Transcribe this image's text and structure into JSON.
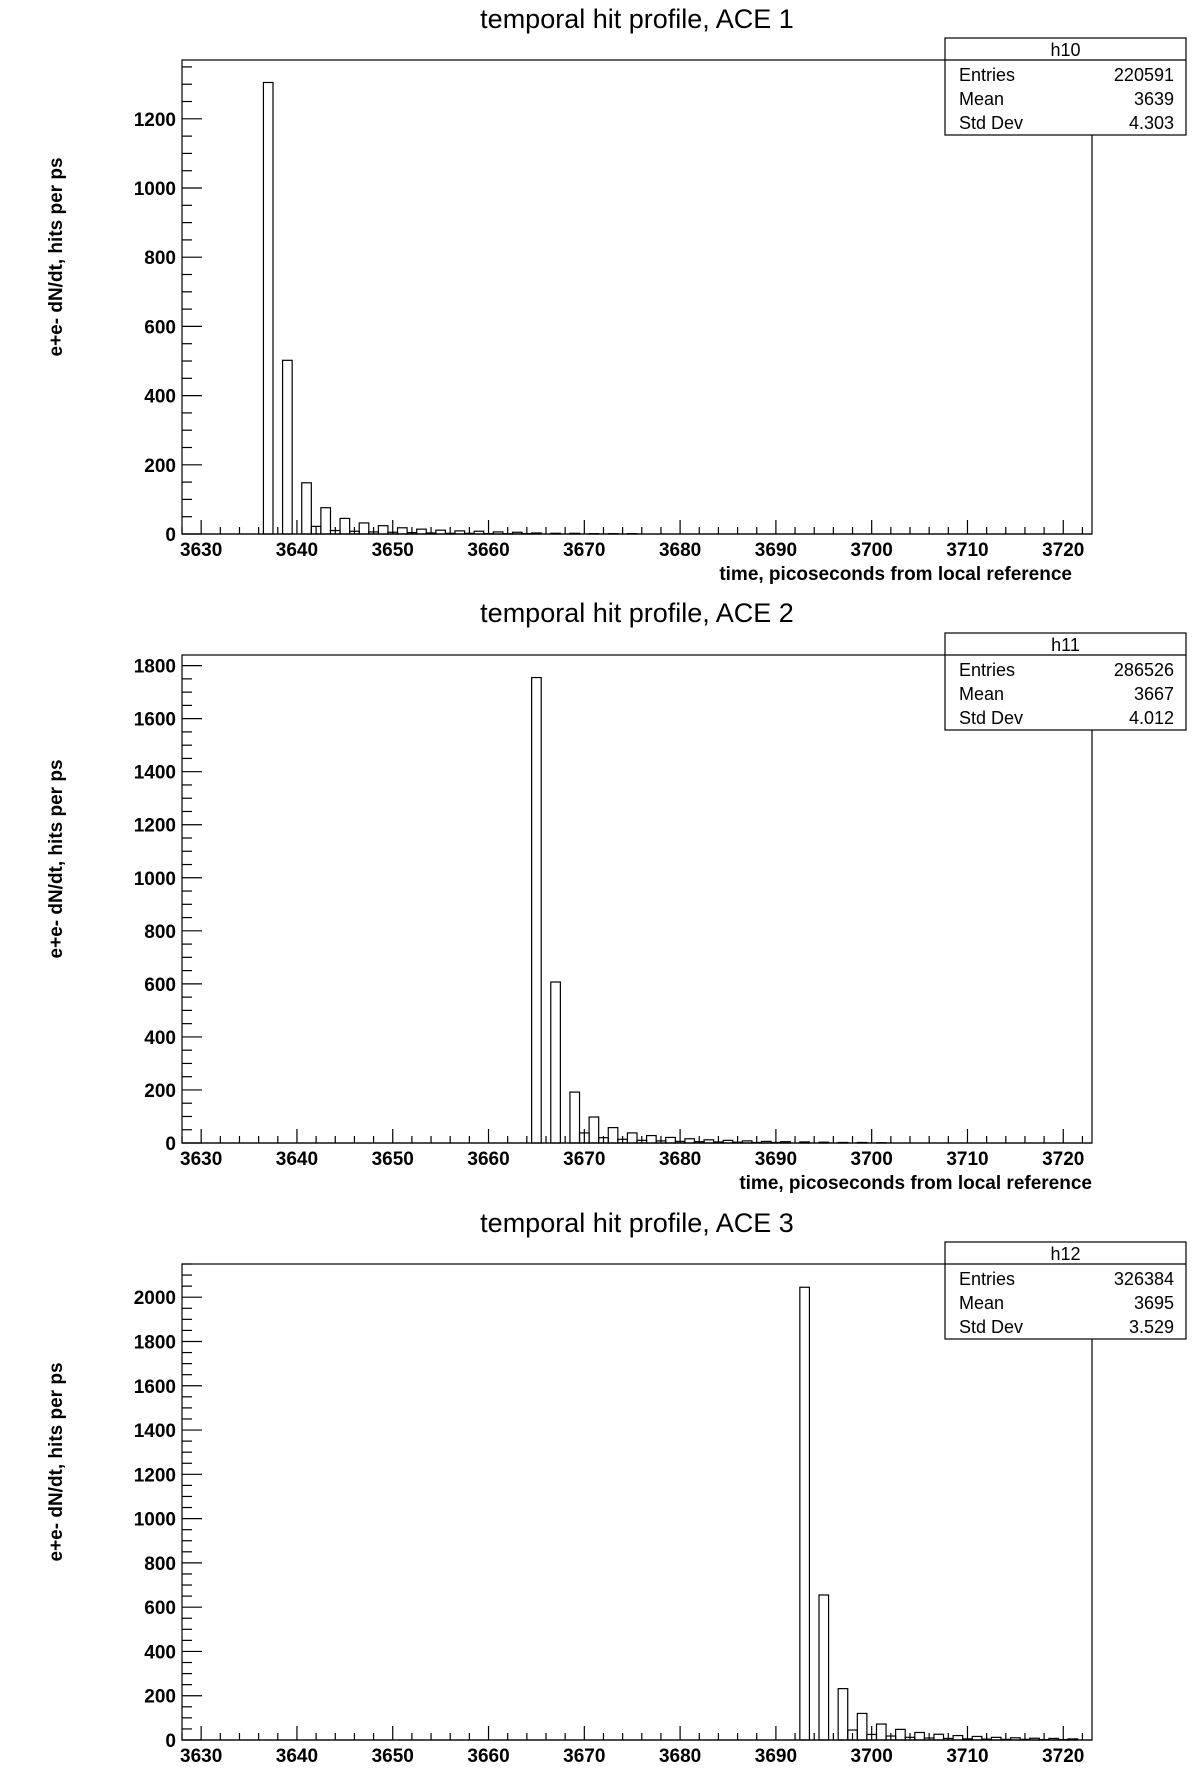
{
  "chart_data": [
    {
      "type": "bar",
      "title": "temporal hit profile, ACE 1",
      "xlabel": "time, picoseconds from local reference",
      "ylabel": "e+e- dN/dt, hits per ps",
      "xlim": [
        3628,
        3723
      ],
      "ylim": [
        0,
        1370
      ],
      "xticks": [
        "3630",
        "3640",
        "3650",
        "3660",
        "3670",
        "3680",
        "3690",
        "3700",
        "3710",
        "3720"
      ],
      "yticks": [
        "0",
        "200",
        "400",
        "600",
        "800",
        "1000",
        "1200"
      ],
      "bin_width": 1,
      "bins": [
        {
          "x": 3637,
          "y": 1305
        },
        {
          "x": 3638,
          "y": 0
        },
        {
          "x": 3639,
          "y": 502
        },
        {
          "x": 3640,
          "y": 0
        },
        {
          "x": 3641,
          "y": 148
        },
        {
          "x": 3642,
          "y": 22
        },
        {
          "x": 3643,
          "y": 76
        },
        {
          "x": 3644,
          "y": 10
        },
        {
          "x": 3645,
          "y": 45
        },
        {
          "x": 3646,
          "y": 8
        },
        {
          "x": 3647,
          "y": 32
        },
        {
          "x": 3648,
          "y": 6
        },
        {
          "x": 3649,
          "y": 24
        },
        {
          "x": 3650,
          "y": 5
        },
        {
          "x": 3651,
          "y": 18
        },
        {
          "x": 3652,
          "y": 4
        },
        {
          "x": 3653,
          "y": 14
        },
        {
          "x": 3654,
          "y": 3
        },
        {
          "x": 3655,
          "y": 11
        },
        {
          "x": 3656,
          "y": 2
        },
        {
          "x": 3657,
          "y": 9
        },
        {
          "x": 3658,
          "y": 2
        },
        {
          "x": 3659,
          "y": 8
        },
        {
          "x": 3660,
          "y": 1
        },
        {
          "x": 3661,
          "y": 6
        },
        {
          "x": 3662,
          "y": 1
        },
        {
          "x": 3663,
          "y": 5
        },
        {
          "x": 3664,
          "y": 1
        },
        {
          "x": 3665,
          "y": 3
        },
        {
          "x": 3667,
          "y": 2
        },
        {
          "x": 3669,
          "y": 2
        },
        {
          "x": 3671,
          "y": 1
        },
        {
          "x": 3673,
          "y": 1
        },
        {
          "x": 3675,
          "y": 1
        }
      ],
      "stats": {
        "name": "h10",
        "entries": "220591",
        "mean": "3639",
        "std_dev": "4.303"
      }
    },
    {
      "type": "bar",
      "title": "temporal hit profile, ACE 2",
      "xlabel": "time, picoseconds from local reference",
      "ylabel": "e+e- dN/dt, hits per ps",
      "xlim": [
        3628,
        3723
      ],
      "ylim": [
        0,
        1840
      ],
      "xticks": [
        "3630",
        "3640",
        "3650",
        "3660",
        "3670",
        "3680",
        "3690",
        "3700",
        "3710",
        "3720"
      ],
      "yticks": [
        "0",
        "200",
        "400",
        "600",
        "800",
        "1000",
        "1200",
        "1400",
        "1600",
        "1800"
      ],
      "bin_width": 1,
      "bins": [
        {
          "x": 3665,
          "y": 1755
        },
        {
          "x": 3666,
          "y": 0
        },
        {
          "x": 3667,
          "y": 607
        },
        {
          "x": 3668,
          "y": 0
        },
        {
          "x": 3669,
          "y": 192
        },
        {
          "x": 3670,
          "y": 38
        },
        {
          "x": 3671,
          "y": 98
        },
        {
          "x": 3672,
          "y": 20
        },
        {
          "x": 3673,
          "y": 58
        },
        {
          "x": 3674,
          "y": 14
        },
        {
          "x": 3675,
          "y": 38
        },
        {
          "x": 3676,
          "y": 10
        },
        {
          "x": 3677,
          "y": 28
        },
        {
          "x": 3678,
          "y": 8
        },
        {
          "x": 3679,
          "y": 21
        },
        {
          "x": 3680,
          "y": 6
        },
        {
          "x": 3681,
          "y": 16
        },
        {
          "x": 3682,
          "y": 5
        },
        {
          "x": 3683,
          "y": 12
        },
        {
          "x": 3684,
          "y": 4
        },
        {
          "x": 3685,
          "y": 10
        },
        {
          "x": 3686,
          "y": 3
        },
        {
          "x": 3687,
          "y": 8
        },
        {
          "x": 3688,
          "y": 2
        },
        {
          "x": 3689,
          "y": 6
        },
        {
          "x": 3690,
          "y": 2
        },
        {
          "x": 3691,
          "y": 5
        },
        {
          "x": 3693,
          "y": 4
        },
        {
          "x": 3695,
          "y": 3
        },
        {
          "x": 3697,
          "y": 2
        },
        {
          "x": 3699,
          "y": 2
        },
        {
          "x": 3701,
          "y": 1
        }
      ],
      "stats": {
        "name": "h11",
        "entries": "286526",
        "mean": "3667",
        "std_dev": "4.012"
      }
    },
    {
      "type": "bar",
      "title": "temporal hit profile, ACE 3",
      "xlabel": "time, picoseconds from local reference",
      "ylabel": "e+e- dN/dt, hits per ps",
      "xlim": [
        3628,
        3723
      ],
      "ylim": [
        0,
        2150
      ],
      "xticks": [
        "3630",
        "3640",
        "3650",
        "3660",
        "3670",
        "3680",
        "3690",
        "3700",
        "3710",
        "3720"
      ],
      "yticks": [
        "0",
        "200",
        "400",
        "600",
        "800",
        "1000",
        "1200",
        "1400",
        "1600",
        "1800",
        "2000"
      ],
      "bin_width": 1,
      "bins": [
        {
          "x": 3693,
          "y": 2045
        },
        {
          "x": 3694,
          "y": 0
        },
        {
          "x": 3695,
          "y": 655
        },
        {
          "x": 3696,
          "y": 0
        },
        {
          "x": 3697,
          "y": 232
        },
        {
          "x": 3698,
          "y": 45
        },
        {
          "x": 3699,
          "y": 120
        },
        {
          "x": 3700,
          "y": 25
        },
        {
          "x": 3701,
          "y": 72
        },
        {
          "x": 3702,
          "y": 18
        },
        {
          "x": 3703,
          "y": 48
        },
        {
          "x": 3704,
          "y": 12
        },
        {
          "x": 3705,
          "y": 34
        },
        {
          "x": 3706,
          "y": 9
        },
        {
          "x": 3707,
          "y": 26
        },
        {
          "x": 3708,
          "y": 7
        },
        {
          "x": 3709,
          "y": 20
        },
        {
          "x": 3710,
          "y": 5
        },
        {
          "x": 3711,
          "y": 16
        },
        {
          "x": 3712,
          "y": 4
        },
        {
          "x": 3713,
          "y": 12
        },
        {
          "x": 3714,
          "y": 3
        },
        {
          "x": 3715,
          "y": 10
        },
        {
          "x": 3716,
          "y": 3
        },
        {
          "x": 3717,
          "y": 8
        },
        {
          "x": 3718,
          "y": 2
        },
        {
          "x": 3719,
          "y": 7
        },
        {
          "x": 3720,
          "y": 2
        },
        {
          "x": 3721,
          "y": 5
        }
      ],
      "stats": {
        "name": "h12",
        "entries": "326384",
        "mean": "3695",
        "std_dev": "3.529"
      }
    }
  ],
  "labels": {
    "entries": "Entries",
    "mean": "Mean",
    "std_dev": "Std Dev"
  }
}
